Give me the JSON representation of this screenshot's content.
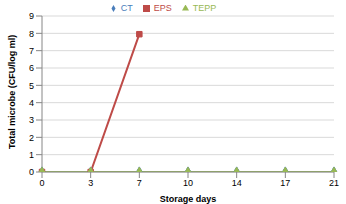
{
  "chart_data": {
    "type": "line",
    "x_label": "Storage days",
    "y_label": "Total microbe (CFU/log ml)",
    "categories": [
      "0",
      "3",
      "7",
      "10",
      "14",
      "17",
      "21"
    ],
    "series": [
      {
        "name": "CT",
        "color": "#4a7ebb",
        "marker": "diamond",
        "values": [
          0,
          0,
          0,
          0,
          0,
          0,
          0
        ]
      },
      {
        "name": "EPS",
        "color": "#be4b48",
        "marker": "square",
        "values": [
          0,
          0,
          7.95,
          null,
          null,
          null,
          null
        ]
      },
      {
        "name": "TEPP",
        "color": "#98b954",
        "marker": "triangle",
        "values": [
          0,
          0,
          0,
          0,
          0,
          0,
          0
        ]
      }
    ],
    "ylim": [
      0,
      9
    ],
    "yticks": [
      0,
      1,
      2,
      3,
      4,
      5,
      6,
      7,
      8,
      9
    ],
    "grid": true,
    "legend": "top"
  }
}
